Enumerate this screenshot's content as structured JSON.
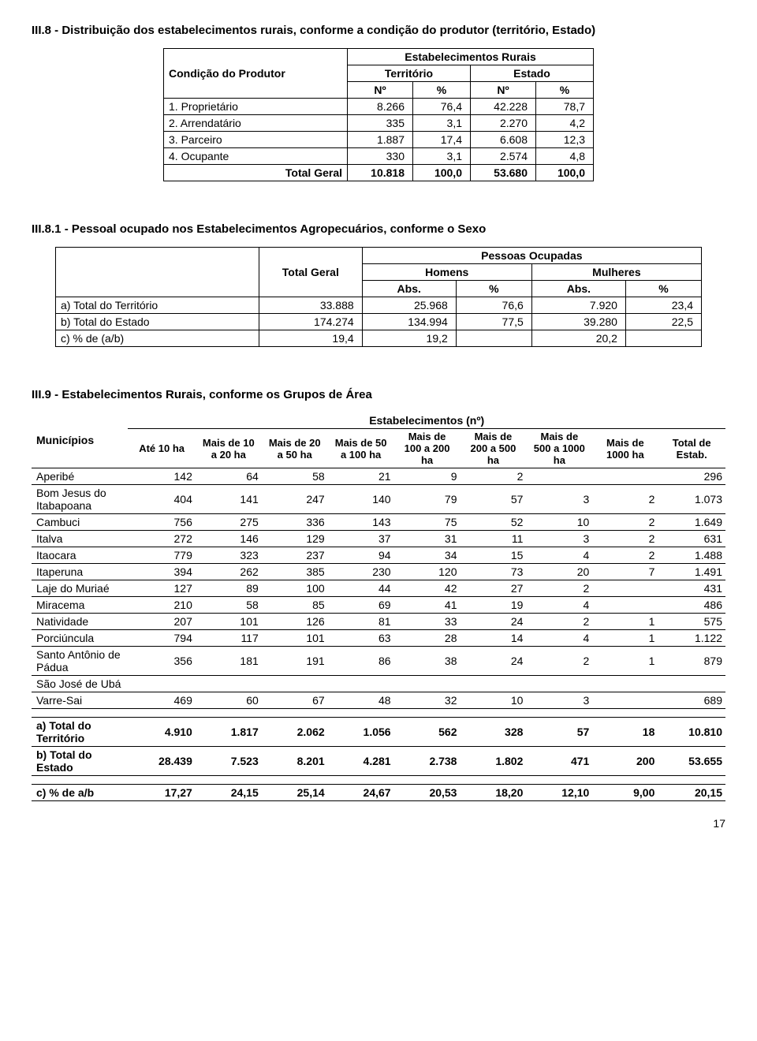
{
  "s8": {
    "title": "III.8 - Distribuição dos estabelecimentos rurais, conforme a condição do produtor (território, Estado)",
    "h_condicao": "Condição do Produtor",
    "h_estab": "Estabelecimentos Rurais",
    "h_terr": "Território",
    "h_est": "Estado",
    "h_no": "Nº",
    "h_pct": "%",
    "rows": [
      {
        "l": "1. Proprietário",
        "a": "8.266",
        "b": "76,4",
        "c": "42.228",
        "d": "78,7"
      },
      {
        "l": "2. Arrendatário",
        "a": "335",
        "b": "3,1",
        "c": "2.270",
        "d": "4,2"
      },
      {
        "l": "3. Parceiro",
        "a": "1.887",
        "b": "17,4",
        "c": "6.608",
        "d": "12,3"
      },
      {
        "l": "4. Ocupante",
        "a": "330",
        "b": "3,1",
        "c": "2.574",
        "d": "4,8"
      }
    ],
    "total_l": "Total Geral",
    "total": [
      "10.818",
      "100,0",
      "53.680",
      "100,0"
    ]
  },
  "s81": {
    "title": "III.8.1 - Pessoal ocupado nos Estabelecimentos Agropecuários, conforme o Sexo",
    "h_tg": "Total Geral",
    "h_po": "Pessoas Ocupadas",
    "h_h": "Homens",
    "h_m": "Mulheres",
    "h_abs": "Abs.",
    "h_pct": "%",
    "rows": [
      {
        "l": "a) Total do Território",
        "tg": "33.888",
        "ha": "25.968",
        "hp": "76,6",
        "ma": "7.920",
        "mp": "23,4"
      },
      {
        "l": "b) Total do Estado",
        "tg": "174.274",
        "ha": "134.994",
        "hp": "77,5",
        "ma": "39.280",
        "mp": "22,5"
      },
      {
        "l": "c) % de (a/b)",
        "tg": "19,4",
        "ha": "19,2",
        "hp": "",
        "ma": "20,2",
        "mp": ""
      }
    ]
  },
  "s9": {
    "title": "III.9 - Estabelecimentos Rurais, conforme os Grupos de Área",
    "h_mun": "Municípios",
    "h_top": "Estabelecimentos (nº)",
    "cols": [
      "Até 10 ha",
      "Mais de 10 a 20 ha",
      "Mais de 20 a 50 ha",
      "Mais de 50 a 100 ha",
      "Mais de 100 a 200 ha",
      "Mais de 200 a 500 ha",
      "Mais de 500 a 1000 ha",
      "Mais de 1000 ha",
      "Total de Estab."
    ],
    "rows": [
      {
        "l": "Aperibé",
        "v": [
          "142",
          "64",
          "58",
          "21",
          "9",
          "2",
          "",
          "",
          "296"
        ]
      },
      {
        "l": "Bom Jesus do Itabapoana",
        "v": [
          "404",
          "141",
          "247",
          "140",
          "79",
          "57",
          "3",
          "2",
          "1.073"
        ]
      },
      {
        "l": "Cambuci",
        "v": [
          "756",
          "275",
          "336",
          "143",
          "75",
          "52",
          "10",
          "2",
          "1.649"
        ]
      },
      {
        "l": "Italva",
        "v": [
          "272",
          "146",
          "129",
          "37",
          "31",
          "11",
          "3",
          "2",
          "631"
        ]
      },
      {
        "l": "Itaocara",
        "v": [
          "779",
          "323",
          "237",
          "94",
          "34",
          "15",
          "4",
          "2",
          "1.488"
        ]
      },
      {
        "l": "Itaperuna",
        "v": [
          "394",
          "262",
          "385",
          "230",
          "120",
          "73",
          "20",
          "7",
          "1.491"
        ]
      },
      {
        "l": "Laje do Muriaé",
        "v": [
          "127",
          "89",
          "100",
          "44",
          "42",
          "27",
          "2",
          "",
          "431"
        ]
      },
      {
        "l": "Miracema",
        "v": [
          "210",
          "58",
          "85",
          "69",
          "41",
          "19",
          "4",
          "",
          "486"
        ]
      },
      {
        "l": "Natividade",
        "v": [
          "207",
          "101",
          "126",
          "81",
          "33",
          "24",
          "2",
          "1",
          "575"
        ]
      },
      {
        "l": "Porciúncula",
        "v": [
          "794",
          "117",
          "101",
          "63",
          "28",
          "14",
          "4",
          "1",
          "1.122"
        ]
      },
      {
        "l": "Santo Antônio de Pádua",
        "v": [
          "356",
          "181",
          "191",
          "86",
          "38",
          "24",
          "2",
          "1",
          "879"
        ]
      },
      {
        "l": "São José de Ubá",
        "v": [
          "",
          "",
          "",
          "",
          "",
          "",
          "",
          "",
          ""
        ]
      },
      {
        "l": "Varre-Sai",
        "v": [
          "469",
          "60",
          "67",
          "48",
          "32",
          "10",
          "3",
          "",
          "689"
        ]
      }
    ],
    "a_l": "a) Total do Território",
    "a": [
      "4.910",
      "1.817",
      "2.062",
      "1.056",
      "562",
      "328",
      "57",
      "18",
      "10.810"
    ],
    "b_l": "b) Total do Estado",
    "b": [
      "28.439",
      "7.523",
      "8.201",
      "4.281",
      "2.738",
      "1.802",
      "471",
      "200",
      "53.655"
    ],
    "c_l": "c) % de a/b",
    "c": [
      "17,27",
      "24,15",
      "25,14",
      "24,67",
      "20,53",
      "18,20",
      "12,10",
      "9,00",
      "20,15"
    ]
  },
  "page": "17"
}
